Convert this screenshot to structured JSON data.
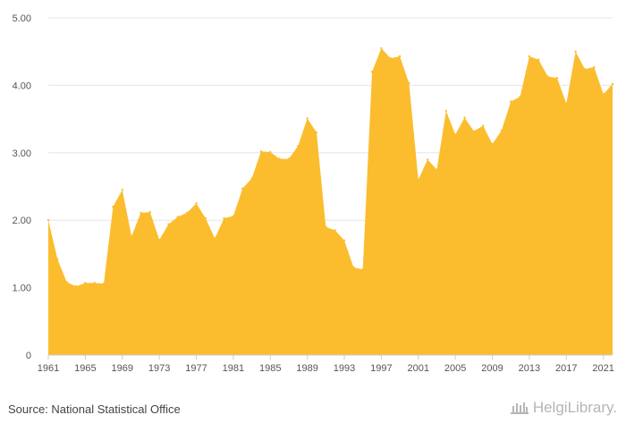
{
  "chart_data": {
    "type": "area",
    "title": "",
    "xlabel": "",
    "ylabel": "",
    "ylim": [
      0,
      5
    ],
    "xlim": [
      1961,
      2022
    ],
    "y_ticks": [
      "0",
      "1.00",
      "2.00",
      "3.00",
      "4.00",
      "5.00"
    ],
    "x_ticks": [
      "1961",
      "1965",
      "1969",
      "1973",
      "1977",
      "1981",
      "1985",
      "1989",
      "1993",
      "1997",
      "2001",
      "2005",
      "2009",
      "2013",
      "2017",
      "2021"
    ],
    "grid": "horizontal",
    "color": "#fbbd2e",
    "x": [
      1961,
      1962,
      1963,
      1964,
      1965,
      1966,
      1967,
      1968,
      1969,
      1970,
      1971,
      1972,
      1973,
      1974,
      1975,
      1976,
      1977,
      1978,
      1979,
      1980,
      1981,
      1982,
      1983,
      1984,
      1985,
      1986,
      1987,
      1988,
      1989,
      1990,
      1991,
      1992,
      1993,
      1994,
      1995,
      1996,
      1997,
      1998,
      1999,
      2000,
      2001,
      2002,
      2003,
      2004,
      2005,
      2006,
      2007,
      2008,
      2009,
      2010,
      2011,
      2012,
      2013,
      2014,
      2015,
      2016,
      2017,
      2018,
      2019,
      2020,
      2021,
      2022
    ],
    "values": [
      2.0,
      1.42,
      1.08,
      1.02,
      1.07,
      1.07,
      1.06,
      2.2,
      2.45,
      1.76,
      2.11,
      2.12,
      1.71,
      1.94,
      2.05,
      2.11,
      2.25,
      2.03,
      1.73,
      2.03,
      2.06,
      2.47,
      2.62,
      3.02,
      3.01,
      2.91,
      2.91,
      3.1,
      3.51,
      3.3,
      1.9,
      1.85,
      1.7,
      1.3,
      1.27,
      4.2,
      4.55,
      4.4,
      4.43,
      4.03,
      2.6,
      2.9,
      2.75,
      3.62,
      3.27,
      3.52,
      3.32,
      3.4,
      3.13,
      3.33,
      3.76,
      3.83,
      4.43,
      4.38,
      4.13,
      4.11,
      3.73,
      4.5,
      4.24,
      4.27,
      3.87,
      4.02
    ]
  },
  "footer": {
    "source": "Source: National Statistical Office",
    "logo_text": "HelgiLibrary."
  }
}
